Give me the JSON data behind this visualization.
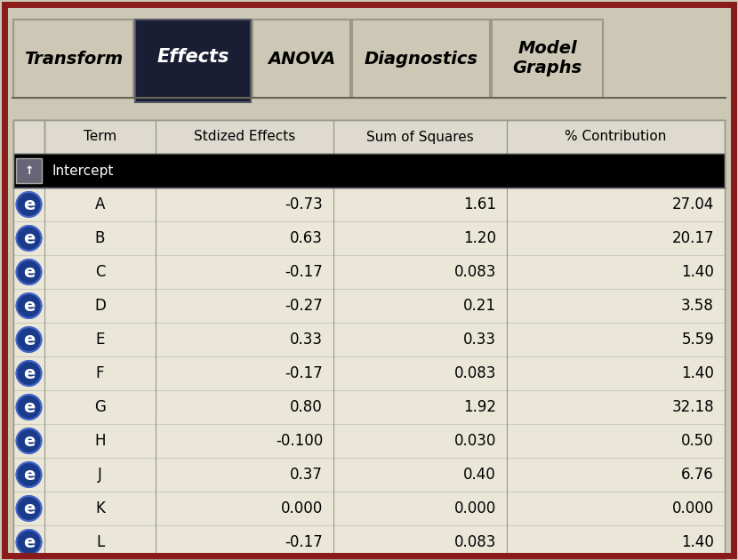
{
  "tabs": [
    "Transform",
    "Effects",
    "ANOVA",
    "Diagnostics",
    "Model\nGraphs"
  ],
  "active_tab": 1,
  "outer_bg": "#cdc8b5",
  "table_bg": "#eae6d8",
  "header_row_bg": "#dedad0",
  "intercept_row_bg": "#000000",
  "border_color": "#8b1a1a",
  "columns": [
    "Term",
    "Stdized Effects",
    "Sum of Squares",
    "% Contribution"
  ],
  "rows": [
    [
      "A",
      "-0.73",
      "1.61",
      "27.04"
    ],
    [
      "B",
      "0.63",
      "1.20",
      "20.17"
    ],
    [
      "C",
      "-0.17",
      "0.083",
      "1.40"
    ],
    [
      "D",
      "-0.27",
      "0.21",
      "3.58"
    ],
    [
      "E",
      "0.33",
      "0.33",
      "5.59"
    ],
    [
      "F",
      "-0.17",
      "0.083",
      "1.40"
    ],
    [
      "G",
      "0.80",
      "1.92",
      "32.18"
    ],
    [
      "H",
      "-0.100",
      "0.030",
      "0.50"
    ],
    [
      "J",
      "0.37",
      "0.40",
      "6.76"
    ],
    [
      "K",
      "0.000",
      "0.000",
      "0.000"
    ],
    [
      "L",
      "-0.17",
      "0.083",
      "1.40"
    ]
  ],
  "icon_color": "#1a3a8a",
  "tab_active_bg": "#1a1e35",
  "tab_inactive_bg": "#cdc8b5",
  "tab_text_active": "#ffffff",
  "tab_text_inactive": "#000000",
  "tab_names": [
    "Transform",
    "Effects",
    "ANOVA",
    "Diagnostics",
    "Model\nGraphs"
  ],
  "tab_active_index": 1
}
